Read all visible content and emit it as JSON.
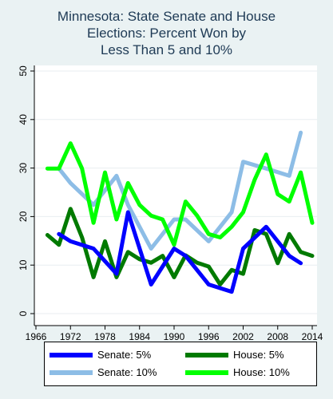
{
  "chart_data": {
    "type": "line",
    "title": [
      "Minnesota: State Senate and House",
      "Elections: Percent Won by",
      "Less Than 5 and 10%"
    ],
    "xlabel": "",
    "ylabel": "",
    "xlim": [
      1966,
      2014
    ],
    "ylim": [
      0,
      50
    ],
    "x_ticks": [
      "1966",
      "1972",
      "1978",
      "1984",
      "1990",
      "1996",
      "2002",
      "2008",
      "2014"
    ],
    "y_ticks": [
      "0",
      "10",
      "20",
      "30",
      "40",
      "50"
    ],
    "grid": "horizontal",
    "legend_position": "bottom",
    "series": [
      {
        "name": "Senate: 5%",
        "color": "#0000ff",
        "x": [
          1970,
          1972,
          1976,
          1980,
          1982,
          1986,
          1990,
          1992,
          1996,
          2000,
          2002,
          2006,
          2010,
          2012
        ],
        "y": [
          16.4,
          14.9,
          13.4,
          8.2,
          20.9,
          6.0,
          13.4,
          11.9,
          6.0,
          4.5,
          13.4,
          17.9,
          11.9,
          10.4
        ]
      },
      {
        "name": "Senate: 10%",
        "color": "#8dbde6",
        "x": [
          1970,
          1972,
          1976,
          1980,
          1982,
          1986,
          1990,
          1992,
          1996,
          2000,
          2002,
          2006,
          2010,
          2012
        ],
        "y": [
          29.9,
          26.9,
          22.4,
          28.4,
          22.4,
          13.4,
          19.4,
          19.4,
          14.9,
          20.9,
          31.3,
          29.9,
          28.4,
          37.3
        ]
      },
      {
        "name": "House: 5%",
        "color": "#007a00",
        "x": [
          1968,
          1970,
          1972,
          1974,
          1976,
          1978,
          1980,
          1982,
          1984,
          1986,
          1988,
          1990,
          1992,
          1994,
          1996,
          1998,
          2000,
          2002,
          2004,
          2006,
          2008,
          2010,
          2012,
          2014
        ],
        "y": [
          16.2,
          14.2,
          21.6,
          15.7,
          7.5,
          14.9,
          7.5,
          12.7,
          11.2,
          10.5,
          11.9,
          7.5,
          12.0,
          10.5,
          9.7,
          6.0,
          9.0,
          8.2,
          17.2,
          16.4,
          10.4,
          16.4,
          12.7,
          11.9
        ]
      },
      {
        "name": "House: 10%",
        "color": "#00ff00",
        "x": [
          1968,
          1970,
          1972,
          1974,
          1976,
          1978,
          1980,
          1982,
          1984,
          1986,
          1988,
          1990,
          1992,
          1994,
          1996,
          1998,
          2000,
          2002,
          2004,
          2006,
          2008,
          2010,
          2012,
          2014
        ],
        "y": [
          29.9,
          29.9,
          35.1,
          29.9,
          18.7,
          29.1,
          19.4,
          26.9,
          22.4,
          20.2,
          19.4,
          14.2,
          23.1,
          20.2,
          16.4,
          15.7,
          17.9,
          20.9,
          27.6,
          32.8,
          24.6,
          23.1,
          29.1,
          18.7
        ]
      }
    ],
    "legend_order": [
      0,
      2,
      1,
      3
    ]
  }
}
